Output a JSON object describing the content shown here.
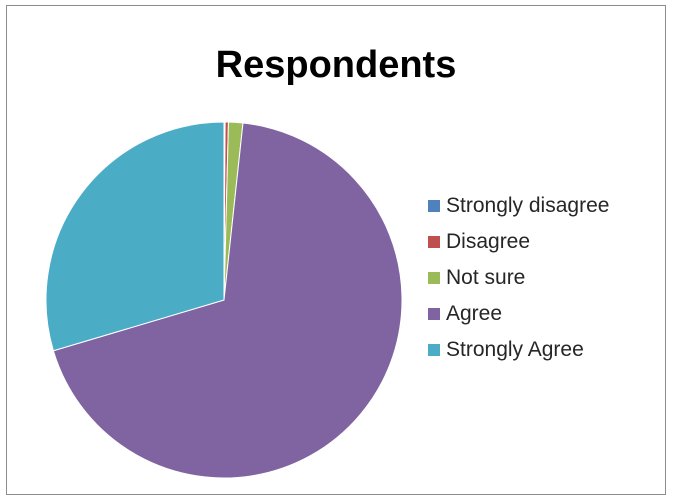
{
  "chart_data": {
    "type": "pie",
    "title": "Respondents",
    "legend_position": "right",
    "categories": [
      "Strongly disagree",
      "Disagree",
      "Not sure",
      "Agree",
      "Strongly Agree"
    ],
    "values": [
      0.1,
      0.3,
      1.3,
      68.7,
      29.6
    ],
    "colors": [
      "#4F81BD",
      "#C0504D",
      "#9BBB59",
      "#8064A2",
      "#4BACC6"
    ]
  }
}
